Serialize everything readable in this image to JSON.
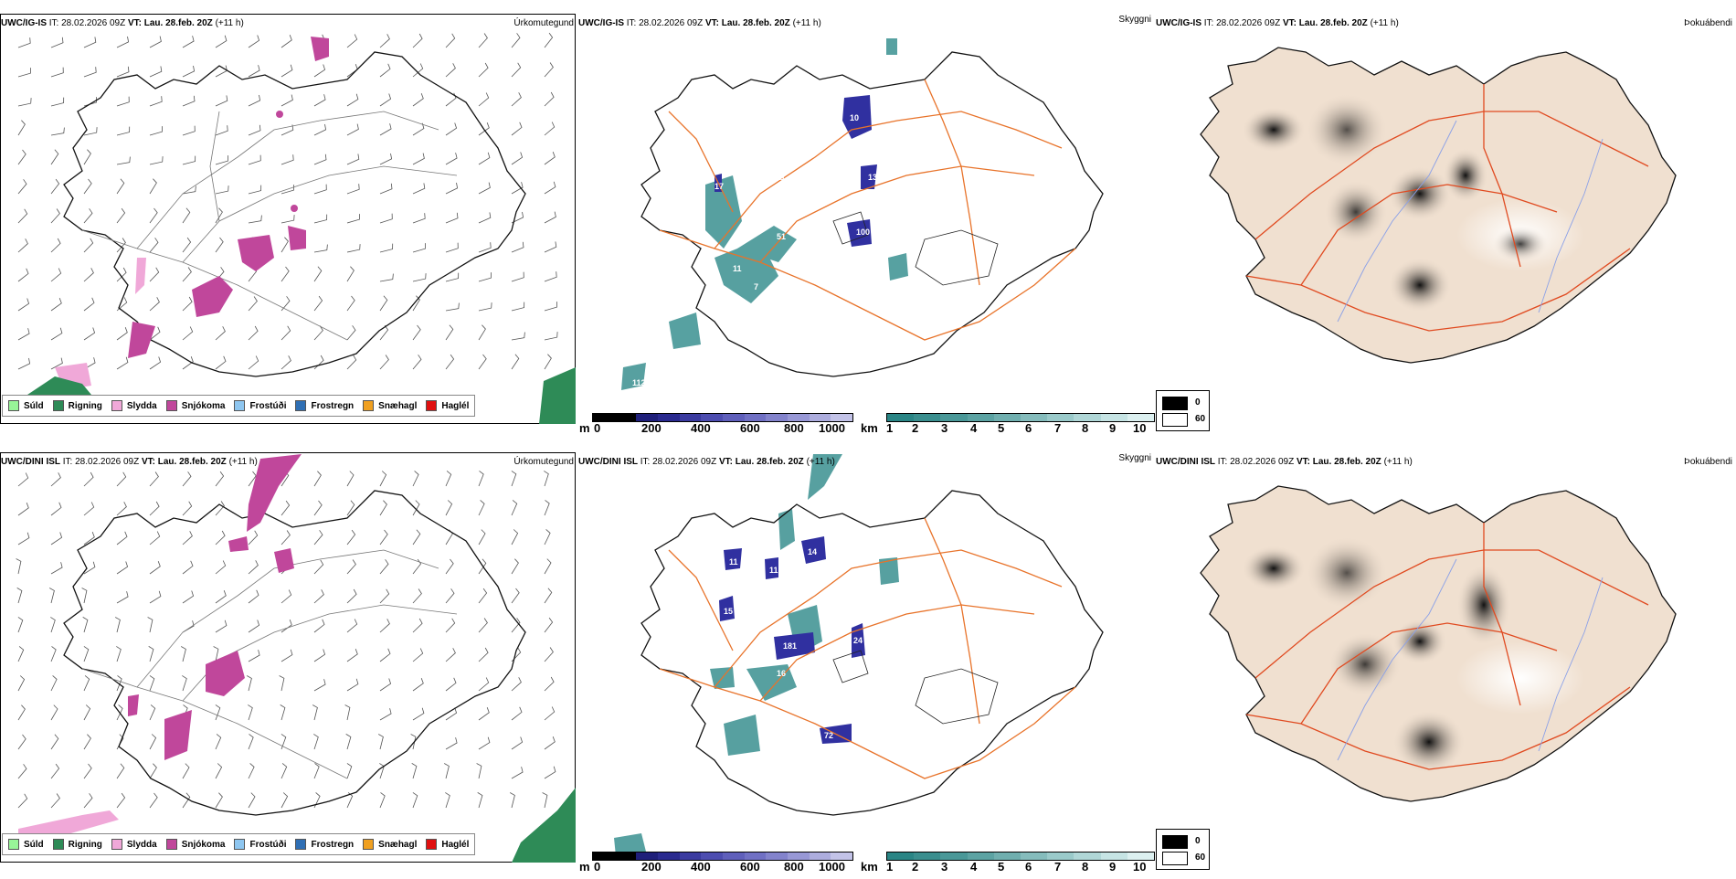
{
  "rows": [
    {
      "model": "UWC/IG-IS",
      "it_label": "IT:",
      "it_value": "28.02.2026 09Z",
      "vt_label": "VT:",
      "vt_value": "Lau. 28.feb. 20Z",
      "lead": "(+11 h)",
      "panel_titles": [
        "Úrkomutegund",
        "Skyggni",
        "Þokuábendi"
      ],
      "elev_labels": [
        "17",
        "11",
        "10",
        "100",
        "13",
        "51",
        "7",
        "11",
        "12",
        "112"
      ]
    },
    {
      "model": "UWC/DINI ISL",
      "it_label": "IT:",
      "it_value": "28.02.2026 09Z",
      "vt_label": "VT:",
      "vt_value": "Lau. 28.feb. 20Z",
      "lead": "(+11 h)",
      "panel_titles": [
        "Úrkomutegund",
        "Skyggni",
        "Þokuábendi"
      ],
      "elev_labels": [
        "11",
        "15",
        "11",
        "181",
        "16",
        "24",
        "72",
        "14"
      ]
    }
  ],
  "precip_legend": [
    {
      "label": "Súld",
      "color": "#98f598"
    },
    {
      "label": "Rigning",
      "color": "#2e8b57"
    },
    {
      "label": "Slydda",
      "color": "#f0a8d8"
    },
    {
      "label": "Snjókoma",
      "color": "#c0479b"
    },
    {
      "label": "Frostúði",
      "color": "#8ec6f0"
    },
    {
      "label": "Frostregn",
      "color": "#2f6fb4"
    },
    {
      "label": "Snæhagl",
      "color": "#f0a020"
    },
    {
      "label": "Haglél",
      "color": "#e01010"
    }
  ],
  "ceiling_bar": {
    "unit": "m",
    "ticks": [
      "0",
      "200",
      "400",
      "600",
      "800",
      "1000"
    ],
    "colors": [
      "#000000",
      "#000000",
      "#1f1f7a",
      "#2a2a8f",
      "#3b3ba0",
      "#4d4db0",
      "#5f5fbb",
      "#7070c4",
      "#8383cc",
      "#9898d6",
      "#adadde",
      "#c3c3e8"
    ]
  },
  "vis_bar": {
    "unit": "km",
    "ticks": [
      "1",
      "2",
      "3",
      "4",
      "5",
      "6",
      "7",
      "8",
      "9",
      "10"
    ],
    "colors": [
      "#2a8585",
      "#3a8e8e",
      "#4a9898",
      "#5ca3a3",
      "#70afaf",
      "#85bcbc",
      "#9acaca",
      "#b0d7d7",
      "#c6e4e4",
      "#dcf0f0"
    ]
  },
  "fog_legend": [
    {
      "label": "0",
      "color": "#000000"
    },
    {
      "label": "60",
      "color": "#ffffff"
    }
  ],
  "colors": {
    "iceland_fill": "#f0e0d0",
    "roads": "#e8732a",
    "rivers": "#8aa0e8",
    "precip_green": "#2e8b57",
    "precip_pink": "#f0a8d8",
    "precip_magenta": "#c0479b",
    "vis_teal": "#3a9090",
    "ceiling_blue": "#3030a0"
  }
}
